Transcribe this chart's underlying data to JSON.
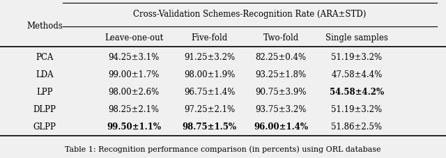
{
  "title_top": "Cross-Validation Schemes-Recognition Rate (ARA±STD)",
  "col_headers": [
    "Methods",
    "Leave-one-out",
    "Five-fold",
    "Two-fold",
    "Single samples"
  ],
  "rows": [
    {
      "method": "PCA",
      "values": [
        "94.25±3.1%",
        "91.25±3.2%",
        "82.25±0.4%",
        "51.19±3.2%"
      ],
      "bold": [
        false,
        false,
        false,
        false
      ]
    },
    {
      "method": "LDA",
      "values": [
        "99.00±1.7%",
        "98.00±1.9%",
        "93.25±1.8%",
        "47.58±4.4%"
      ],
      "bold": [
        false,
        false,
        false,
        false
      ]
    },
    {
      "method": "LPP",
      "values": [
        "98.00±2.6%",
        "96.75±1.4%",
        "90.75±3.9%",
        "54.58±4.2%"
      ],
      "bold": [
        false,
        false,
        false,
        true
      ]
    },
    {
      "method": "DLPP",
      "values": [
        "98.25±2.1%",
        "97.25±2.1%",
        "93.75±3.2%",
        "51.19±3.2%"
      ],
      "bold": [
        false,
        false,
        false,
        false
      ]
    },
    {
      "method": "GLPP",
      "values": [
        "99.50±1.1%",
        "98.75±1.5%",
        "96.00±1.4%",
        "51.86±2.5%"
      ],
      "bold": [
        true,
        true,
        true,
        false
      ]
    }
  ],
  "caption": "Table 1: Recognition performance comparison (in percents) using ORL database",
  "bg_color": "#f0f0f0",
  "text_color": "#000000"
}
